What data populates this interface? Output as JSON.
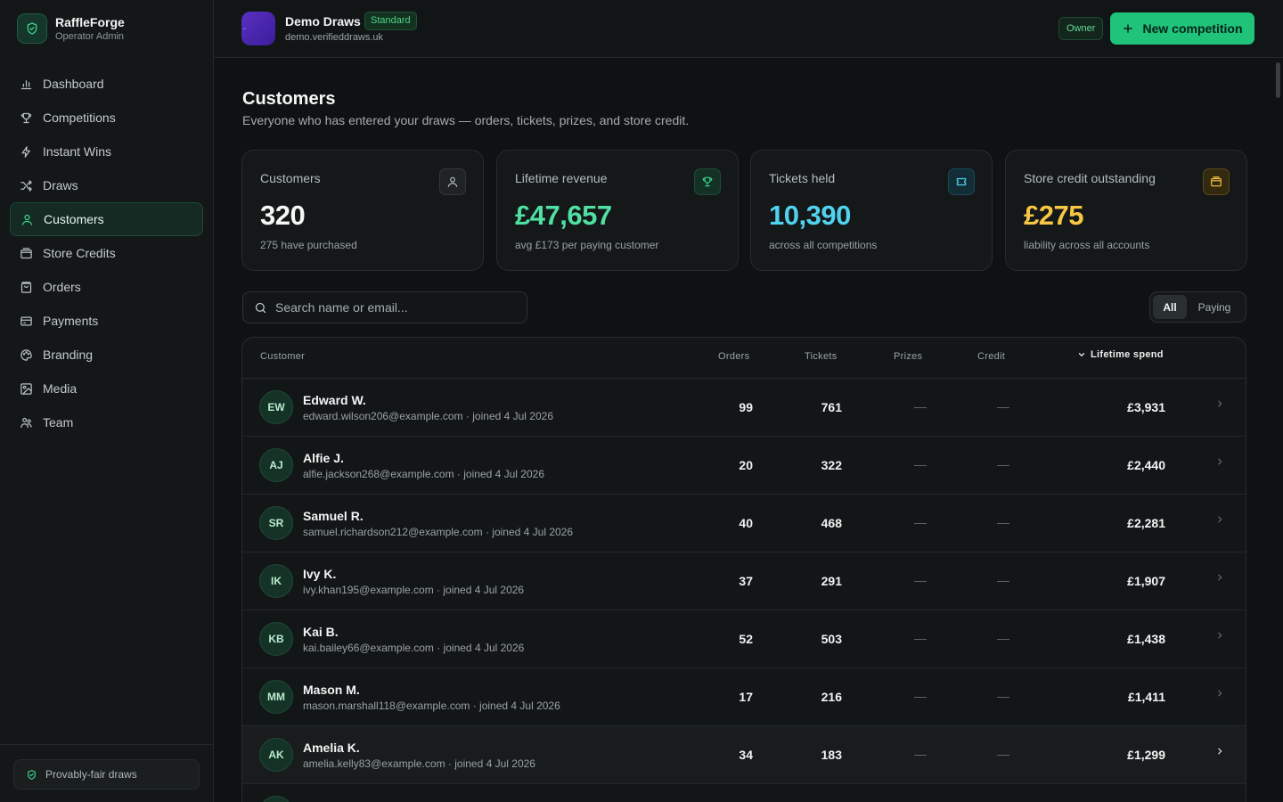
{
  "brand": {
    "name": "RaffleForge",
    "subtitle": "Operator Admin"
  },
  "nav": [
    {
      "label": "Dashboard",
      "icon": "bar-chart-icon"
    },
    {
      "label": "Competitions",
      "icon": "trophy-icon"
    },
    {
      "label": "Instant Wins",
      "icon": "bolt-icon"
    },
    {
      "label": "Draws",
      "icon": "shuffle-icon"
    },
    {
      "label": "Customers",
      "icon": "user-icon",
      "active": true
    },
    {
      "label": "Store Credits",
      "icon": "wallet-icon"
    },
    {
      "label": "Orders",
      "icon": "bag-icon"
    },
    {
      "label": "Payments",
      "icon": "card-icon"
    },
    {
      "label": "Branding",
      "icon": "palette-icon"
    },
    {
      "label": "Media",
      "icon": "image-icon"
    },
    {
      "label": "Team",
      "icon": "team-icon"
    }
  ],
  "footer": {
    "badge": "Provably-fair draws"
  },
  "header": {
    "org_name": "Demo Draws",
    "plan": "Standard",
    "org_url": "demo.verifieddraws.uk",
    "role": "Owner",
    "new_button": "New competition"
  },
  "page": {
    "title": "Customers",
    "subtitle": "Everyone who has entered your draws — orders, tickets, prizes, and store credit."
  },
  "stats": [
    {
      "label": "Customers",
      "value": "320",
      "sub": "275 have purchased",
      "color": "#f4f7f6",
      "icon": "user-icon"
    },
    {
      "label": "Lifetime revenue",
      "value": "£47,657",
      "sub": "avg £173 per paying customer",
      "color": "#4fe0a2",
      "icon": "trophy-icon"
    },
    {
      "label": "Tickets held",
      "value": "10,390",
      "sub": "across all competitions",
      "color": "#4fd3ef",
      "icon": "ticket-icon"
    },
    {
      "label": "Store credit outstanding",
      "value": "£275",
      "sub": "liability across all accounts",
      "color": "#f7c744",
      "icon": "wallet-icon"
    }
  ],
  "search": {
    "placeholder": "Search name or email..."
  },
  "filter": {
    "all": "All",
    "paying": "Paying"
  },
  "table": {
    "columns": {
      "customer": "Customer",
      "orders": "Orders",
      "tickets": "Tickets",
      "prizes": "Prizes",
      "credit": "Credit",
      "spend": "Lifetime spend"
    },
    "rows": [
      {
        "initials": "EW",
        "name": "Edward W.",
        "meta": "edward.wilson206@example.com · joined 4 Jul 2026",
        "orders": "99",
        "tickets": "761",
        "prizes": "—",
        "credit": "—",
        "spend": "£3,931"
      },
      {
        "initials": "AJ",
        "name": "Alfie J.",
        "meta": "alfie.jackson268@example.com · joined 4 Jul 2026",
        "orders": "20",
        "tickets": "322",
        "prizes": "—",
        "credit": "—",
        "spend": "£2,440"
      },
      {
        "initials": "SR",
        "name": "Samuel R.",
        "meta": "samuel.richardson212@example.com · joined 4 Jul 2026",
        "orders": "40",
        "tickets": "468",
        "prizes": "—",
        "credit": "—",
        "spend": "£2,281"
      },
      {
        "initials": "IK",
        "name": "Ivy K.",
        "meta": "ivy.khan195@example.com · joined 4 Jul 2026",
        "orders": "37",
        "tickets": "291",
        "prizes": "—",
        "credit": "—",
        "spend": "£1,907"
      },
      {
        "initials": "KB",
        "name": "Kai B.",
        "meta": "kai.bailey66@example.com · joined 4 Jul 2026",
        "orders": "52",
        "tickets": "503",
        "prizes": "—",
        "credit": "—",
        "spend": "£1,438"
      },
      {
        "initials": "MM",
        "name": "Mason M.",
        "meta": "mason.marshall118@example.com · joined 4 Jul 2026",
        "orders": "17",
        "tickets": "216",
        "prizes": "—",
        "credit": "—",
        "spend": "£1,411"
      },
      {
        "initials": "AK",
        "name": "Amelia K.",
        "meta": "amelia.kelly83@example.com · joined 4 Jul 2026",
        "orders": "34",
        "tickets": "183",
        "prizes": "—",
        "credit": "—",
        "spend": "£1,299"
      }
    ]
  }
}
